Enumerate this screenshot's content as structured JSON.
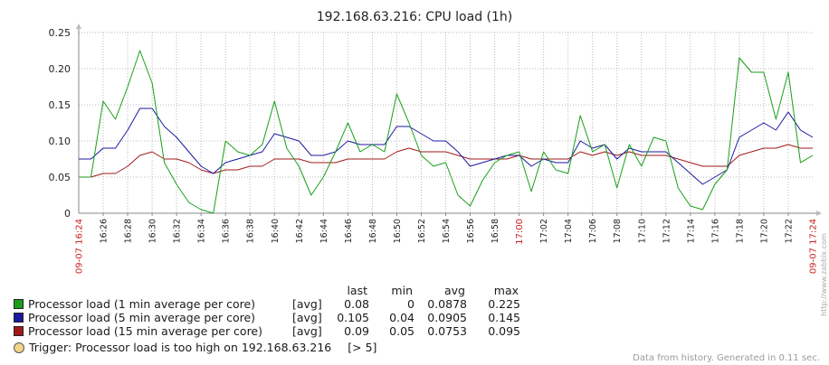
{
  "chart_data": {
    "type": "line",
    "title": "192.168.63.216: CPU load (1h)",
    "ylim": [
      0,
      0.25
    ],
    "y_ticks": [
      "0",
      "0.05",
      "0.10",
      "0.15",
      "0.20",
      "0.25"
    ],
    "x_start_label": "09-07 16:24",
    "x_end_label": "09-07 17:24",
    "x_ticks": [
      "16:26",
      "16:28",
      "16:30",
      "16:32",
      "16:34",
      "16:36",
      "16:38",
      "16:40",
      "16:42",
      "16:44",
      "16:46",
      "16:48",
      "16:50",
      "16:52",
      "16:54",
      "16:56",
      "16:58",
      "17:00",
      "17:02",
      "17:04",
      "17:06",
      "17:08",
      "17:10",
      "17:12",
      "17:14",
      "17:16",
      "17:18",
      "17:20",
      "17:22"
    ],
    "x_tick_red": "17:00",
    "x_minutes": [
      0,
      1,
      2,
      3,
      4,
      5,
      6,
      7,
      8,
      9,
      10,
      11,
      12,
      13,
      14,
      15,
      16,
      17,
      18,
      19,
      20,
      21,
      22,
      23,
      24,
      25,
      26,
      27,
      28,
      29,
      30,
      31,
      32,
      33,
      34,
      35,
      36,
      37,
      38,
      39,
      40,
      41,
      42,
      43,
      44,
      45,
      46,
      47,
      48,
      49,
      50,
      51,
      52,
      53,
      54,
      55,
      56,
      57,
      58,
      59,
      60
    ],
    "series": [
      {
        "name": "Processor load (1 min average per core)",
        "color": "#1a9e1a",
        "values": [
          0.05,
          0.05,
          0.155,
          0.13,
          0.175,
          0.225,
          0.18,
          0.07,
          0.04,
          0.015,
          0.005,
          0.0,
          0.1,
          0.085,
          0.08,
          0.095,
          0.155,
          0.09,
          0.065,
          0.025,
          0.05,
          0.085,
          0.125,
          0.085,
          0.095,
          0.085,
          0.165,
          0.125,
          0.08,
          0.065,
          0.07,
          0.025,
          0.01,
          0.045,
          0.07,
          0.08,
          0.085,
          0.03,
          0.085,
          0.06,
          0.055,
          0.135,
          0.085,
          0.095,
          0.035,
          0.095,
          0.065,
          0.105,
          0.1,
          0.035,
          0.01,
          0.005,
          0.04,
          0.06,
          0.215,
          0.195,
          0.195,
          0.13,
          0.195,
          0.07,
          0.08
        ]
      },
      {
        "name": "Processor load (5 min average per core)",
        "color": "#1a1aa0",
        "values": [
          0.075,
          0.075,
          0.09,
          0.09,
          0.115,
          0.145,
          0.145,
          0.12,
          0.105,
          0.085,
          0.065,
          0.055,
          0.07,
          0.075,
          0.08,
          0.085,
          0.11,
          0.105,
          0.1,
          0.08,
          0.08,
          0.085,
          0.1,
          0.095,
          0.095,
          0.095,
          0.12,
          0.12,
          0.11,
          0.1,
          0.1,
          0.085,
          0.065,
          0.07,
          0.075,
          0.08,
          0.08,
          0.065,
          0.075,
          0.07,
          0.07,
          0.1,
          0.09,
          0.095,
          0.075,
          0.09,
          0.085,
          0.085,
          0.085,
          0.07,
          0.055,
          0.04,
          0.05,
          0.06,
          0.105,
          0.115,
          0.125,
          0.115,
          0.14,
          0.115,
          0.105
        ]
      },
      {
        "name": "Processor load (15 min average per core)",
        "color": "#a01a1a",
        "values": [
          0.05,
          0.05,
          0.055,
          0.055,
          0.065,
          0.08,
          0.085,
          0.075,
          0.075,
          0.07,
          0.06,
          0.055,
          0.06,
          0.06,
          0.065,
          0.065,
          0.075,
          0.075,
          0.075,
          0.07,
          0.07,
          0.07,
          0.075,
          0.075,
          0.075,
          0.075,
          0.085,
          0.09,
          0.085,
          0.085,
          0.085,
          0.08,
          0.075,
          0.075,
          0.075,
          0.075,
          0.08,
          0.075,
          0.075,
          0.075,
          0.075,
          0.085,
          0.08,
          0.085,
          0.08,
          0.085,
          0.08,
          0.08,
          0.08,
          0.075,
          0.07,
          0.065,
          0.065,
          0.065,
          0.08,
          0.085,
          0.09,
          0.09,
          0.095,
          0.09,
          0.09
        ]
      }
    ],
    "legend": {
      "headers": {
        "last": "last",
        "min": "min",
        "avg": "avg",
        "max": "max"
      },
      "rows": [
        {
          "label": "Processor load (1 min average per core)",
          "func": "[avg]",
          "last": "0.08",
          "min": "0",
          "avg": "0.0878",
          "max": "0.225",
          "color": "#1a9e1a"
        },
        {
          "label": "Processor load (5 min average per core)",
          "func": "[avg]",
          "last": "0.105",
          "min": "0.04",
          "avg": "0.0905",
          "max": "0.145",
          "color": "#1a1aa0"
        },
        {
          "label": "Processor load (15 min average per core)",
          "func": "[avg]",
          "last": "0.09",
          "min": "0.05",
          "avg": "0.0753",
          "max": "0.095",
          "color": "#a01a1a"
        }
      ],
      "trigger": {
        "label": "Trigger: Processor load is too high on 192.168.63.216",
        "value": "[> 5]",
        "color": "#f2d48a"
      }
    },
    "footer": "Data from history. Generated in 0.11 sec.",
    "watermark": "http://www.zabbix.com"
  }
}
